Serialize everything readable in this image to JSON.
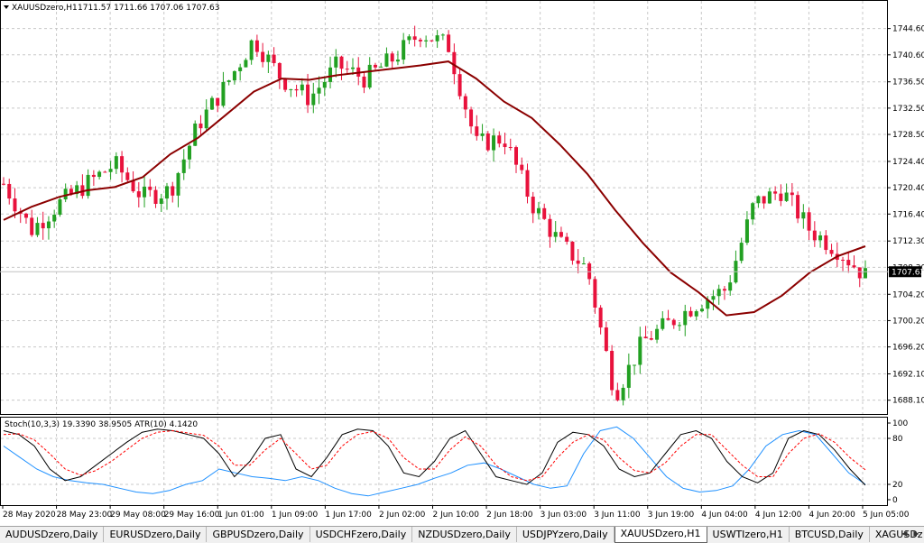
{
  "main": {
    "title": "XAUUSDzero,H1",
    "ohlc": "1711.57 1711.66 1707.06 1707.63",
    "price_ticks": [
      "1744.60",
      "1740.60",
      "1736.50",
      "1732.50",
      "1728.50",
      "1724.40",
      "1720.40",
      "1716.40",
      "1712.30",
      "1708.30",
      "1704.20",
      "1700.20",
      "1696.20",
      "1692.10",
      "1688.10"
    ],
    "current_price": "1707.63"
  },
  "indicator": {
    "title": "Stoch(10,3,3) 19.3390 38.9505  ATR(10) 4.1420",
    "ticks": [
      "100",
      "80",
      "20",
      "0"
    ]
  },
  "time_labels": [
    "28 May 2020",
    "28 May 23:00",
    "29 May 08:00",
    "29 May 16:00",
    "1 Jun 01:00",
    "1 Jun 09:00",
    "1 Jun 17:00",
    "2 Jun 02:00",
    "2 Jun 10:00",
    "2 Jun 18:00",
    "3 Jun 03:00",
    "3 Jun 11:00",
    "3 Jun 19:00",
    "4 Jun 04:00",
    "4 Jun 12:00",
    "4 Jun 20:00",
    "5 Jun 05:00"
  ],
  "tabs": [
    "AUDUSDzero,Daily",
    "EURUSDzero,Daily",
    "GBPUSDzero,Daily",
    "USDCHFzero,Daily",
    "NZDUSDzero,Daily",
    "USDJPYzero,Daily",
    "XAUUSDzero,H1",
    "USWTIzero,H1",
    "BTCUSD,Daily",
    "XAGUSDz"
  ],
  "active_tab": 6,
  "colors": {
    "bull": "#22a022",
    "bear": "#e8123c",
    "ma": "#8b0000",
    "stoch_main": "#000000",
    "stoch_signal": "#ff0000",
    "atr": "#1e90ff"
  },
  "chart_data": {
    "type": "candlestick",
    "symbol": "XAUUSDzero",
    "timeframe": "H1",
    "ylim": [
      1686.0,
      1748.8
    ],
    "x": [
      "28 May 2020",
      "28 May 23:00",
      "29 May 08:00",
      "29 May 16:00",
      "1 Jun 01:00",
      "1 Jun 09:00",
      "1 Jun 17:00",
      "2 Jun 02:00",
      "2 Jun 10:00",
      "2 Jun 18:00",
      "3 Jun 03:00",
      "3 Jun 11:00",
      "3 Jun 19:00",
      "4 Jun 04:00",
      "4 Jun 12:00",
      "4 Jun 20:00",
      "5 Jun 05:00"
    ],
    "anchors": [
      1721,
      1714,
      1718,
      1721,
      1724,
      1719,
      1720,
      1730,
      1736,
      1743,
      1737,
      1734,
      1739,
      1737,
      1740,
      1744,
      1742,
      1727,
      1728,
      1718,
      1712,
      1708,
      1689,
      1697,
      1700,
      1703,
      1705,
      1718,
      1720,
      1714,
      1711,
      1707
    ],
    "moving_average": [
      1715.5,
      1717.5,
      1719.0,
      1720.0,
      1720.5,
      1722.0,
      1725.5,
      1728.0,
      1731.5,
      1735.0,
      1737.0,
      1736.8,
      1737.5,
      1738.0,
      1738.5,
      1739.0,
      1739.6,
      1737.0,
      1733.5,
      1731.0,
      1727.0,
      1722.5,
      1717.0,
      1712.0,
      1707.5,
      1704.5,
      1701.0,
      1701.5,
      1704.0,
      1707.5,
      1710.0,
      1711.5
    ],
    "stoch_main": [
      90,
      85,
      70,
      40,
      25,
      30,
      45,
      60,
      75,
      88,
      92,
      90,
      85,
      80,
      60,
      30,
      50,
      80,
      85,
      40,
      30,
      55,
      85,
      92,
      90,
      70,
      35,
      30,
      50,
      80,
      90,
      60,
      30,
      25,
      20,
      35,
      75,
      88,
      85,
      70,
      40,
      30,
      35,
      60,
      85,
      90,
      80,
      50,
      30,
      22,
      35,
      80,
      90,
      85,
      65,
      40,
      19
    ],
    "stoch_signal": [
      85,
      86,
      78,
      60,
      40,
      32,
      38,
      50,
      65,
      80,
      88,
      90,
      87,
      84,
      70,
      45,
      45,
      65,
      80,
      60,
      40,
      45,
      70,
      85,
      89,
      80,
      55,
      40,
      40,
      65,
      82,
      70,
      45,
      30,
      25,
      30,
      55,
      75,
      85,
      78,
      55,
      38,
      35,
      48,
      70,
      85,
      85,
      65,
      45,
      30,
      30,
      60,
      80,
      86,
      75,
      55,
      39
    ],
    "atr": [
      70,
      55,
      40,
      30,
      25,
      22,
      20,
      15,
      10,
      8,
      12,
      20,
      25,
      40,
      35,
      30,
      28,
      25,
      30,
      25,
      15,
      8,
      5,
      10,
      15,
      20,
      28,
      35,
      45,
      48,
      40,
      30,
      20,
      15,
      18,
      60,
      90,
      95,
      80,
      55,
      30,
      15,
      10,
      12,
      18,
      40,
      70,
      85,
      90,
      85,
      60,
      35,
      20
    ],
    "price_ticks": [
      1744.6,
      1740.6,
      1736.5,
      1732.5,
      1728.5,
      1724.4,
      1720.4,
      1716.4,
      1712.3,
      1708.3,
      1704.2,
      1700.2,
      1696.2,
      1692.1,
      1688.1
    ],
    "indicator_ticks": [
      100,
      80,
      20,
      0
    ]
  }
}
